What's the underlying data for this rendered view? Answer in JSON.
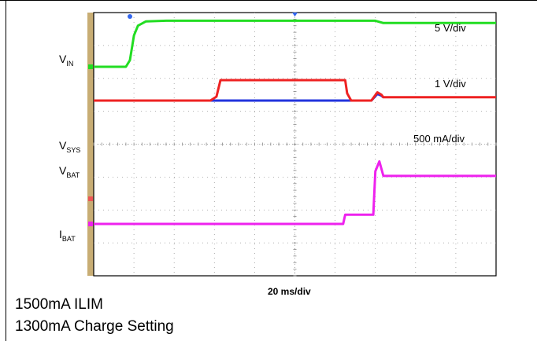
{
  "chart_data": {
    "type": "line",
    "title": "",
    "time_scale": "20 ms/div",
    "channel_labels": [
      {
        "name": "V",
        "sub": "IN"
      },
      {
        "name": "V",
        "sub": "SYS"
      },
      {
        "name": "V",
        "sub": "BAT"
      },
      {
        "name": "I",
        "sub": "BAT"
      }
    ],
    "scale_labels": [
      "5 V/div",
      "1 V/div",
      "500 mA/div"
    ],
    "grid": {
      "x_divisions": 10,
      "y_divisions": 8
    },
    "series": [
      {
        "channel": "VIN",
        "color": "#22dd22",
        "unit": "V/div",
        "scale": 5,
        "x_div": [
          0,
          0.8,
          0.9,
          1.0,
          1.1,
          1.3,
          1.8,
          7.0,
          7.2,
          10
        ],
        "y_div": [
          0.0,
          0.0,
          0.2,
          0.95,
          1.25,
          1.38,
          1.4,
          1.4,
          1.33,
          1.33
        ]
      },
      {
        "channel": "VSYS",
        "color": "#ee2222",
        "unit": "V/div",
        "scale": 1,
        "x_div": [
          0,
          2.9,
          3.05,
          3.15,
          6.25,
          6.3,
          6.4,
          6.9,
          7.05,
          7.15,
          7.2,
          10
        ],
        "y_div": [
          0.0,
          0.0,
          0.12,
          0.62,
          0.62,
          0.22,
          0.0,
          0.0,
          0.25,
          0.18,
          0.1,
          0.1
        ]
      },
      {
        "channel": "VBAT",
        "color": "#2233dd",
        "unit": "V/div",
        "scale": 1,
        "x_div": [
          2.9,
          3.05,
          6.25,
          6.3,
          6.9,
          7.05,
          7.15,
          7.2
        ],
        "y_div": [
          0.0,
          0.0,
          0.0,
          0.0,
          0.0,
          0.2,
          0.15,
          0.1
        ]
      },
      {
        "channel": "IBAT",
        "color": "#ee22ee",
        "unit": "mA/div",
        "scale": 500,
        "x_div": [
          0,
          6.2,
          6.25,
          6.3,
          6.95,
          7.0,
          7.1,
          7.2,
          10
        ],
        "y_div": [
          0.0,
          0.0,
          0.28,
          0.28,
          0.28,
          1.6,
          1.9,
          1.46,
          1.46
        ]
      }
    ]
  },
  "captions": [
    "1500mA ILIM",
    "1300mA Charge Setting"
  ]
}
